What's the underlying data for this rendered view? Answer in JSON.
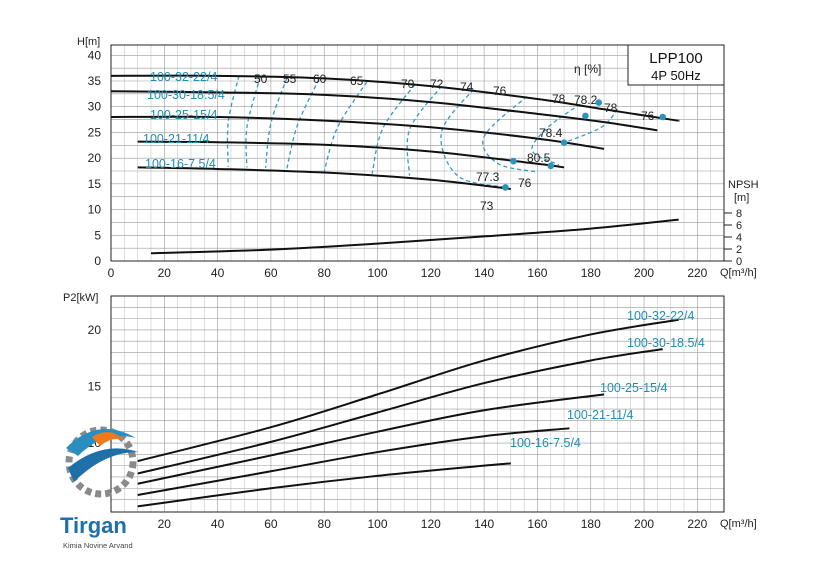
{
  "chart_data": [
    {
      "type": "line",
      "title_box": {
        "model": "LPP100",
        "spec": "4P  50Hz"
      },
      "ylabel": "H[m]",
      "xlabel": "Q[m³/h]",
      "eta_label": "η [%]",
      "npsh_label": "NPSH",
      "npsh_unit": "[m]",
      "xlim": [
        0,
        230
      ],
      "ylim": [
        0,
        42
      ],
      "x_ticks": [
        "0",
        "20",
        "40",
        "60",
        "80",
        "100",
        "120",
        "140",
        "160",
        "180",
        "200",
        "220"
      ],
      "y_ticks": [
        "0",
        "5",
        "10",
        "15",
        "20",
        "25",
        "30",
        "35",
        "40"
      ],
      "npsh_ticks": [
        "0",
        "2",
        "4",
        "6",
        "8"
      ],
      "series": [
        {
          "name": "100-32-22/4",
          "x": [
            0,
            40,
            80,
            120,
            160,
            185,
            210,
            213
          ],
          "y": [
            36,
            36,
            35.5,
            34,
            31.5,
            29.5,
            27.5,
            27.3
          ]
        },
        {
          "name": "100-30-18.5/4",
          "x": [
            0,
            40,
            80,
            120,
            160,
            185,
            205
          ],
          "y": [
            33,
            32.8,
            32.3,
            30.9,
            28.6,
            27,
            25.4
          ]
        },
        {
          "name": "100-25-15/4",
          "x": [
            0,
            40,
            80,
            120,
            160,
            185
          ],
          "y": [
            28,
            28,
            27.3,
            26,
            23.8,
            21.8
          ]
        },
        {
          "name": "100-21-11/4",
          "x": [
            10,
            40,
            80,
            120,
            160,
            170
          ],
          "y": [
            23.2,
            23.1,
            22.6,
            21.3,
            18.9,
            18.2
          ]
        },
        {
          "name": "100-16-7.5/4",
          "x": [
            10,
            40,
            80,
            120,
            150
          ],
          "y": [
            18.2,
            17.9,
            17.2,
            15.8,
            14
          ]
        }
      ],
      "npsh_series": {
        "x": [
          15,
          60,
          100,
          140,
          180,
          213
        ],
        "y": [
          1.3,
          1.9,
          2.9,
          4.1,
          5.4,
          6.9
        ]
      },
      "efficiency_labels": [
        "50",
        "55",
        "60",
        "65",
        "70",
        "72",
        "74",
        "76",
        "78",
        "78.2",
        "78",
        "76",
        "78.4",
        "80.5",
        "77.3",
        "76",
        "73"
      ],
      "efficiency_points": [
        {
          "q": 183,
          "h": 30.8,
          "label": "78.2"
        },
        {
          "q": 207,
          "h": 28,
          "label": "76"
        },
        {
          "q": 178,
          "h": 28.2,
          "label": "78.4"
        },
        {
          "q": 170,
          "h": 23,
          "label": "80.5"
        },
        {
          "q": 151,
          "h": 19.4,
          "label": "77.3"
        },
        {
          "q": 165,
          "h": 18.5,
          "label": "76"
        },
        {
          "q": 148,
          "h": 14.3,
          "label": "73"
        }
      ]
    },
    {
      "type": "line",
      "ylabel": "P2[kW]",
      "xlabel": "Q[m³/h]",
      "xlim": [
        0,
        230
      ],
      "ylim": [
        3.9,
        23
      ],
      "x_ticks": [
        "20",
        "40",
        "60",
        "80",
        "100",
        "120",
        "140",
        "160",
        "180",
        "200",
        "220"
      ],
      "y_ticks": [
        "10",
        "15",
        "20"
      ],
      "series": [
        {
          "name": "100-32-22/4",
          "x": [
            10,
            60,
            100,
            140,
            180,
            213
          ],
          "y": [
            8.4,
            11.4,
            14.3,
            17.3,
            19.6,
            20.9
          ]
        },
        {
          "name": "100-30-18.5/4",
          "x": [
            10,
            60,
            100,
            140,
            180,
            207
          ],
          "y": [
            7.3,
            10.1,
            12.7,
            15.3,
            17.3,
            18.3
          ]
        },
        {
          "name": "100-25-15/4",
          "x": [
            10,
            60,
            100,
            140,
            185
          ],
          "y": [
            6.4,
            8.9,
            11,
            12.9,
            14.3
          ]
        },
        {
          "name": "100-21-11/4",
          "x": [
            10,
            60,
            100,
            140,
            172
          ],
          "y": [
            5.4,
            7.5,
            9.2,
            10.6,
            11.3
          ]
        },
        {
          "name": "100-16-7.5/4",
          "x": [
            10,
            60,
            100,
            140,
            150
          ],
          "y": [
            4.4,
            6,
            7.1,
            8,
            8.2
          ]
        }
      ]
    }
  ],
  "logo": {
    "name": "Tirgan",
    "tagline": "Kimia Novine Arvand",
    "accent": "#2a8fc0",
    "orange": "#f07a1a"
  }
}
